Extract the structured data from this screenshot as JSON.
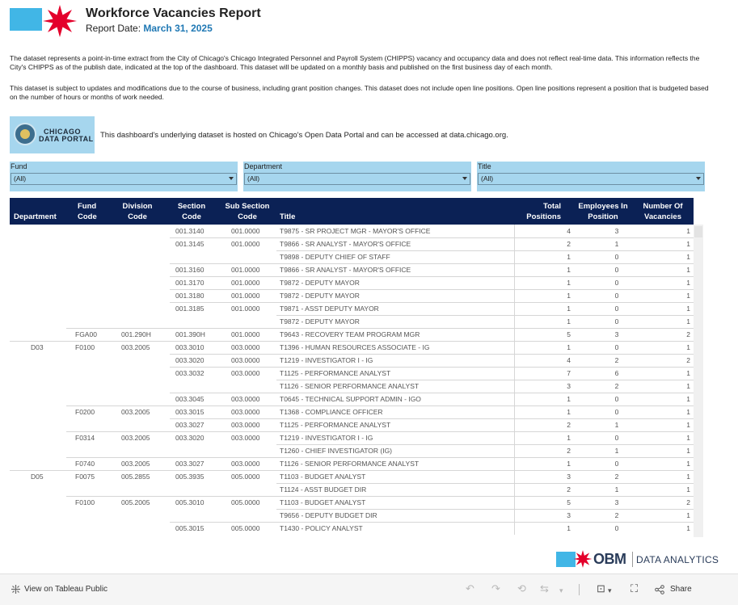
{
  "header": {
    "title": "Workforce Vacancies Report",
    "report_date_label": "Report Date:",
    "report_date_value": "March 31, 2025"
  },
  "description": {
    "p1": "The dataset represents a point-in-time extract from the City of Chicago's Chicago Integrated Personnel and Payroll System (CHIPPS) vacancy and occupancy data and does not reflect real-time data. This information reflects the City's CHIPPS as of the publish date, indicated at the top of the dashboard. This dataset will be updated on a monthly basis and published on the first business day of each month.",
    "p2": "This dataset is subject to updates and modifications due to the course of business, including grant position changes. This dataset does not include open line positions. Open line positions represent a position that is budgeted based on the number of hours or months of work needed."
  },
  "portal": {
    "logo_line1": "CHICAGO",
    "logo_line2": "DATA PORTAL",
    "note": "This dashboard's underlying dataset is hosted on Chicago's Open Data Portal and can be accessed at data.chicago.org."
  },
  "filters": {
    "fund": {
      "label": "Fund",
      "value": "(All)"
    },
    "department": {
      "label": "Department",
      "value": "(All)"
    },
    "title": {
      "label": "Title",
      "value": "(All)"
    }
  },
  "table": {
    "headers": {
      "department": "Department",
      "fund_code": "Fund Code",
      "division_code": "Division Code",
      "section_code": "Section Code",
      "sub_section_code": "Sub Section Code",
      "title": "Title",
      "total_positions": "Total Positions",
      "employees_in_position": "Employees In Position",
      "number_of_vacancies": "Number Of Vacancies"
    },
    "rows": [
      {
        "dept": "",
        "fund": "",
        "div": "",
        "sec": "001.3140",
        "sub": "001.0000",
        "title": "T9875 - SR PROJECT MGR - MAYOR'S OFFICE",
        "total": "4",
        "emp": "3",
        "vac": "1"
      },
      {
        "dept": "",
        "fund": "",
        "div": "",
        "sec": "001.3145",
        "sub": "001.0000",
        "title": "T9866 - SR ANALYST - MAYOR'S OFFICE",
        "total": "2",
        "emp": "1",
        "vac": "1"
      },
      {
        "dept": "",
        "fund": "",
        "div": "",
        "sec": "",
        "sub": "",
        "title": "T9898 - DEPUTY CHIEF OF STAFF",
        "total": "1",
        "emp": "0",
        "vac": "1"
      },
      {
        "dept": "",
        "fund": "",
        "div": "",
        "sec": "001.3160",
        "sub": "001.0000",
        "title": "T9866 - SR ANALYST - MAYOR'S OFFICE",
        "total": "1",
        "emp": "0",
        "vac": "1"
      },
      {
        "dept": "",
        "fund": "",
        "div": "",
        "sec": "001.3170",
        "sub": "001.0000",
        "title": "T9872 - DEPUTY MAYOR",
        "total": "1",
        "emp": "0",
        "vac": "1"
      },
      {
        "dept": "",
        "fund": "",
        "div": "",
        "sec": "001.3180",
        "sub": "001.0000",
        "title": "T9872 - DEPUTY MAYOR",
        "total": "1",
        "emp": "0",
        "vac": "1"
      },
      {
        "dept": "",
        "fund": "",
        "div": "",
        "sec": "001.3185",
        "sub": "001.0000",
        "title": "T9871 - ASST DEPUTY MAYOR",
        "total": "1",
        "emp": "0",
        "vac": "1"
      },
      {
        "dept": "",
        "fund": "",
        "div": "",
        "sec": "",
        "sub": "",
        "title": "T9872 - DEPUTY MAYOR",
        "total": "1",
        "emp": "0",
        "vac": "1"
      },
      {
        "dept": "",
        "fund": "FGA00",
        "div": "001.290H",
        "sec": "001.390H",
        "sub": "001.0000",
        "title": "T9643 - RECOVERY TEAM PROGRAM MGR",
        "total": "5",
        "emp": "3",
        "vac": "2"
      },
      {
        "dept": "D03",
        "fund": "F0100",
        "div": "003.2005",
        "sec": "003.3010",
        "sub": "003.0000",
        "title": "T1396 - HUMAN RESOURCES ASSOCIATE - IG",
        "total": "1",
        "emp": "0",
        "vac": "1"
      },
      {
        "dept": "",
        "fund": "",
        "div": "",
        "sec": "003.3020",
        "sub": "003.0000",
        "title": "T1219 - INVESTIGATOR I - IG",
        "total": "4",
        "emp": "2",
        "vac": "2"
      },
      {
        "dept": "",
        "fund": "",
        "div": "",
        "sec": "003.3032",
        "sub": "003.0000",
        "title": "T1125 - PERFORMANCE ANALYST",
        "total": "7",
        "emp": "6",
        "vac": "1"
      },
      {
        "dept": "",
        "fund": "",
        "div": "",
        "sec": "",
        "sub": "",
        "title": "T1126 - SENIOR PERFORMANCE ANALYST",
        "total": "3",
        "emp": "2",
        "vac": "1"
      },
      {
        "dept": "",
        "fund": "",
        "div": "",
        "sec": "003.3045",
        "sub": "003.0000",
        "title": "T0645 - TECHNICAL SUPPORT ADMIN - IGO",
        "total": "1",
        "emp": "0",
        "vac": "1"
      },
      {
        "dept": "",
        "fund": "F0200",
        "div": "003.2005",
        "sec": "003.3015",
        "sub": "003.0000",
        "title": "T1368 - COMPLIANCE OFFICER",
        "total": "1",
        "emp": "0",
        "vac": "1"
      },
      {
        "dept": "",
        "fund": "",
        "div": "",
        "sec": "003.3027",
        "sub": "003.0000",
        "title": "T1125 - PERFORMANCE ANALYST",
        "total": "2",
        "emp": "1",
        "vac": "1"
      },
      {
        "dept": "",
        "fund": "F0314",
        "div": "003.2005",
        "sec": "003.3020",
        "sub": "003.0000",
        "title": "T1219 - INVESTIGATOR I - IG",
        "total": "1",
        "emp": "0",
        "vac": "1"
      },
      {
        "dept": "",
        "fund": "",
        "div": "",
        "sec": "",
        "sub": "",
        "title": "T1260 - CHIEF INVESTIGATOR (IG)",
        "total": "2",
        "emp": "1",
        "vac": "1"
      },
      {
        "dept": "",
        "fund": "F0740",
        "div": "003.2005",
        "sec": "003.3027",
        "sub": "003.0000",
        "title": "T1126 - SENIOR PERFORMANCE ANALYST",
        "total": "1",
        "emp": "0",
        "vac": "1"
      },
      {
        "dept": "D05",
        "fund": "F0075",
        "div": "005.2855",
        "sec": "005.3935",
        "sub": "005.0000",
        "title": "T1103 - BUDGET ANALYST",
        "total": "3",
        "emp": "2",
        "vac": "1"
      },
      {
        "dept": "",
        "fund": "",
        "div": "",
        "sec": "",
        "sub": "",
        "title": "T1124 - ASST BUDGET DIR",
        "total": "2",
        "emp": "1",
        "vac": "1"
      },
      {
        "dept": "",
        "fund": "F0100",
        "div": "005.2005",
        "sec": "005.3010",
        "sub": "005.0000",
        "title": "T1103 - BUDGET ANALYST",
        "total": "5",
        "emp": "3",
        "vac": "2"
      },
      {
        "dept": "",
        "fund": "",
        "div": "",
        "sec": "",
        "sub": "",
        "title": "T9656 - DEPUTY BUDGET DIR",
        "total": "3",
        "emp": "2",
        "vac": "1"
      },
      {
        "dept": "",
        "fund": "",
        "div": "",
        "sec": "005.3015",
        "sub": "005.0000",
        "title": "T1430 - POLICY ANALYST",
        "total": "1",
        "emp": "0",
        "vac": "1"
      }
    ]
  },
  "footer_brand": {
    "obm": "OBM",
    "subtitle": "DATA ANALYTICS"
  },
  "toolbar": {
    "view_label": "View on Tableau Public",
    "share_label": "Share"
  },
  "colors": {
    "accent_blue": "#41b6e6",
    "star_red": "#e4002b",
    "header_navy": "#0b2155",
    "filter_bg": "#a6d6ee"
  }
}
